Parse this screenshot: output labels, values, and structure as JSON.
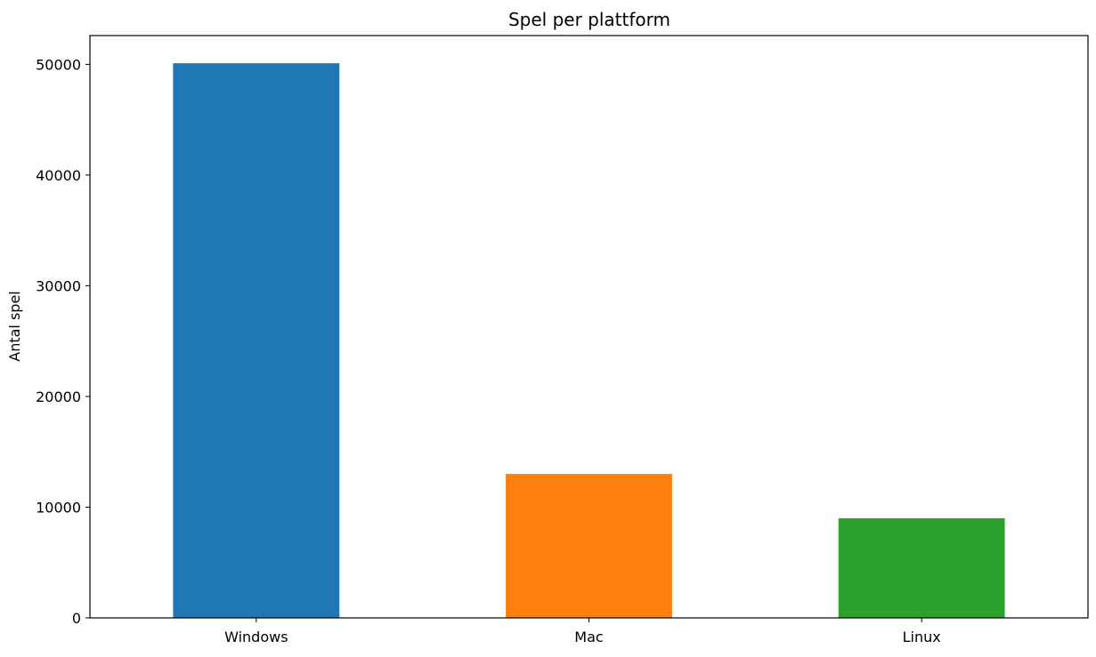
{
  "chart_data": {
    "type": "bar",
    "title": "Spel per plattform",
    "xlabel": "",
    "ylabel": "Antal spel",
    "categories": [
      "Windows",
      "Mac",
      "Linux"
    ],
    "values": [
      50100,
      13000,
      9000
    ],
    "colors": [
      "#1f77b4",
      "#ff7f0e",
      "#2ca02c"
    ],
    "ylim": [
      0,
      52600
    ],
    "yticks": [
      0,
      10000,
      20000,
      30000,
      40000,
      50000
    ],
    "ytick_labels": [
      "0",
      "10000",
      "20000",
      "30000",
      "40000",
      "50000"
    ],
    "grid": false,
    "legend": "none"
  }
}
